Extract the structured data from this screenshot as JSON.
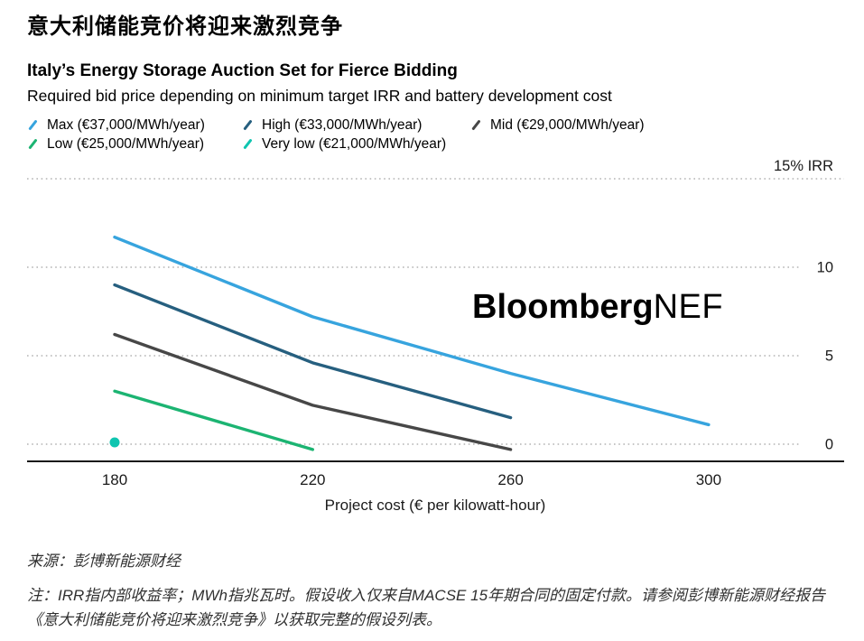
{
  "header": {
    "title_cn": "意大利储能竞价将迎来激烈竞争",
    "title_en": "Italy’s Energy Storage Auction Set for Fierce Bidding",
    "subtitle": "Required bid price depending on minimum target IRR and battery development cost"
  },
  "legend": {
    "items": [
      {
        "label": "Max (€37,000/MWh/year)",
        "color": "#37A4DE"
      },
      {
        "label": "High (€33,000/MWh/year)",
        "color": "#265F7F"
      },
      {
        "label": "Mid (€29,000/MWh/year)",
        "color": "#474747"
      },
      {
        "label": "Low (€25,000/MWh/year)",
        "color": "#1CB472"
      },
      {
        "label": "Very low (€21,000/MWh/year)",
        "color": "#0FC5B0"
      }
    ]
  },
  "watermark": {
    "bold": "Bloomberg",
    "rest": "NEF"
  },
  "footer": {
    "source": "来源：彭博新能源财经",
    "note": "注：IRR指内部收益率；MWh指兆瓦时。假设收入仅来自MACSE 15年期合同的固定付款。请参阅彭博新能源财经报告《意大利储能竞价将迎来激烈竞争》以获取完整的假设列表。"
  },
  "chart_data": {
    "type": "line",
    "title": "Italy’s Energy Storage Auction Set for Fierce Bidding",
    "subtitle": "Required bid price depending on minimum target IRR and battery development cost",
    "xlabel": "Project cost (€ per kilowatt-hour)",
    "ylabel": "IRR (%)",
    "x_ticks": [
      180,
      220,
      260,
      300
    ],
    "y_ticks": [
      15,
      10,
      5,
      0
    ],
    "y_tick_labels": [
      "15% IRR",
      "10",
      "5",
      "0"
    ],
    "xlim": [
      162,
      327
    ],
    "ylim": [
      -1,
      16.4
    ],
    "grid": "dotted-horizontal",
    "legend_position": "top-left",
    "series": [
      {
        "name": "Max (€37,000/MWh/year)",
        "color": "#37A4DE",
        "x": [
          180,
          220,
          260,
          300
        ],
        "values": [
          11.7,
          7.2,
          4.0,
          1.1
        ]
      },
      {
        "name": "High (€33,000/MWh/year)",
        "color": "#265F7F",
        "x": [
          180,
          220,
          260
        ],
        "values": [
          9.0,
          4.6,
          1.5
        ]
      },
      {
        "name": "Mid (€29,000/MWh/year)",
        "color": "#474747",
        "x": [
          180,
          220,
          260
        ],
        "values": [
          6.2,
          2.2,
          -0.3
        ]
      },
      {
        "name": "Low (€25,000/MWh/year)",
        "color": "#1CB472",
        "x": [
          180,
          220
        ],
        "values": [
          3.0,
          -0.3
        ]
      },
      {
        "name": "Very low (€21,000/MWh/year)",
        "color": "#0FC5B0",
        "x": [
          180
        ],
        "values": [
          0.1
        ],
        "style": "point"
      }
    ]
  }
}
